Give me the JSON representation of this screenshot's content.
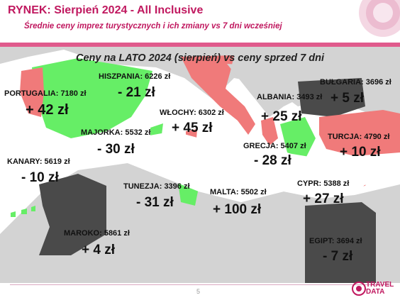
{
  "header": {
    "title": "RYNEK: Sierpień 2024 - All Inclusive",
    "subtitle": "Średnie ceny imprez turystycznych i ich zmiany vs 7 dni wcześniej"
  },
  "map_title": "Ceny na LATO 2024 (sierpień) vs ceny sprzed 7 dni",
  "colors": {
    "accent": "#c0185f",
    "increase": "#f07a7a",
    "decrease": "#66ee66",
    "land": "#cfcfcf",
    "dark_land": "#4a4a4a",
    "header_bg": "#f3d3e1"
  },
  "destinations": [
    {
      "key": "portugalia",
      "label": "PORTUGALIA: 7180 zł",
      "change": "+ 42 zł"
    },
    {
      "key": "hiszpania",
      "label": "HISZPANIA: 6226 zł",
      "change": "- 21 zł"
    },
    {
      "key": "majorka",
      "label": "MAJORKA: 5532 zł",
      "change": "- 30 zł"
    },
    {
      "key": "kanary",
      "label": "KANARY: 5619 zł",
      "change": "- 10 zł"
    },
    {
      "key": "wlochy",
      "label": "WŁOCHY: 6302 zł",
      "change": "+ 45 zł"
    },
    {
      "key": "albania",
      "label": "ALBANIA: 3493 zł",
      "change": "+ 25 zł"
    },
    {
      "key": "bulgaria",
      "label": "BUŁGARIA: 3696 zł",
      "change": "+ 5 zł"
    },
    {
      "key": "turcja",
      "label": "TURCJA: 4790 zł",
      "change": "+ 10 zł"
    },
    {
      "key": "grecja",
      "label": "GRECJA: 5407 zł",
      "change": "- 28 zł"
    },
    {
      "key": "tunezja",
      "label": "TUNEZJA: 3396 zł",
      "change": "- 31 zł"
    },
    {
      "key": "malta",
      "label": "MALTA: 5502 zł",
      "change": "+ 100 zł"
    },
    {
      "key": "cypr",
      "label": "CYPR: 5388 zł",
      "change": "+ 27 zł"
    },
    {
      "key": "maroko",
      "label": "MAROKO: 5861 zł",
      "change": "+ 4 zł"
    },
    {
      "key": "egipt",
      "label": "EGIPT: 3694 zł",
      "change": "- 7 zł"
    }
  ],
  "footer": {
    "page": "5",
    "logo_top": "TRAVEL",
    "logo_bottom": "DATA"
  }
}
